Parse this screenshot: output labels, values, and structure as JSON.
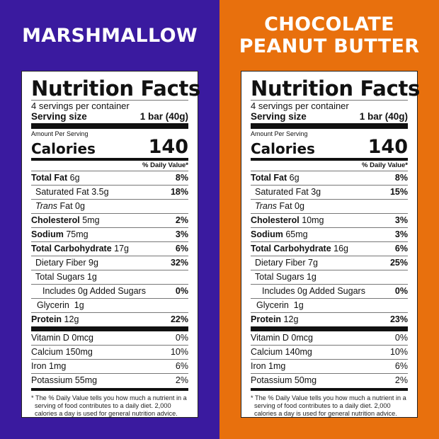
{
  "colors": {
    "left_bg": "#3a1a9f",
    "right_bg": "#e8700d"
  },
  "panels": [
    {
      "heading": [
        "MARSHMALLOW"
      ],
      "title": "Nutrition Facts",
      "servings": "4 servings per container",
      "serving_size_label": "Serving size",
      "serving_size_value": "1 bar (40g)",
      "amount_per_serving": "Amount Per Serving",
      "calories_label": "Calories",
      "calories_value": "140",
      "daily_value_header": "% Daily Value*",
      "nutrients": [
        {
          "bold": "Total Fat",
          "amount": " 6g",
          "dv": "8%",
          "indent": 0
        },
        {
          "bold": "",
          "amount": "Saturated Fat 3.5g",
          "dv": "18%",
          "indent": 6
        },
        {
          "italic": "Trans",
          "amount": " Fat 0g",
          "dv": "",
          "indent": 6
        },
        {
          "bold": "Cholesterol",
          "amount": " 5mg",
          "dv": "2%",
          "indent": 0
        },
        {
          "bold": "Sodium",
          "amount": " 75mg",
          "dv": "3%",
          "indent": 0
        },
        {
          "bold": "Total Carbohydrate",
          "amount": " 17g",
          "dv": "6%",
          "indent": 0
        },
        {
          "bold": "",
          "amount": "Dietary Fiber 9g",
          "dv": "32%",
          "indent": 6
        },
        {
          "bold": "",
          "amount": "Total Sugars 1g",
          "dv": "",
          "indent": 6
        },
        {
          "bold": "",
          "amount": "Includes 0g Added Sugars",
          "dv": "0%",
          "indent": 16
        },
        {
          "bold": "",
          "amount": "Glycerin  1g",
          "dv": "",
          "indent": 8
        },
        {
          "bold": "Protein",
          "amount": " 12g",
          "dv": "22%",
          "indent": 0
        }
      ],
      "vitamins": [
        {
          "name": "Vitamin D 0mcg",
          "dv": "0%"
        },
        {
          "name": "Calcium 150mg",
          "dv": "10%"
        },
        {
          "name": "Iron 1mg",
          "dv": "6%"
        },
        {
          "name": "Potassium 55mg",
          "dv": "2%"
        }
      ],
      "footnote": "* The % Daily Value tells you how much a nutrient in a serving of food contributes to a daily diet. 2,000 calories a day is used for general nutrition advice."
    },
    {
      "heading": [
        "CHOCOLATE",
        "PEANUT BUTTER"
      ],
      "title": "Nutrition Facts",
      "servings": "4 servings per container",
      "serving_size_label": "Serving size",
      "serving_size_value": "1 bar (40g)",
      "amount_per_serving": "Amount Per Serving",
      "calories_label": "Calories",
      "calories_value": "140",
      "daily_value_header": "% Daily Value*",
      "nutrients": [
        {
          "bold": "Total Fat",
          "amount": " 6g",
          "dv": "8%",
          "indent": 0
        },
        {
          "bold": "",
          "amount": "Saturated Fat 3g",
          "dv": "15%",
          "indent": 6
        },
        {
          "italic": "Trans",
          "amount": " Fat 0g",
          "dv": "",
          "indent": 6
        },
        {
          "bold": "Cholesterol",
          "amount": " 10mg",
          "dv": "3%",
          "indent": 0
        },
        {
          "bold": "Sodium",
          "amount": " 65mg",
          "dv": "3%",
          "indent": 0
        },
        {
          "bold": "Total Carbohydrate",
          "amount": " 16g",
          "dv": "6%",
          "indent": 0
        },
        {
          "bold": "",
          "amount": "Dietary Fiber 7g",
          "dv": "25%",
          "indent": 6
        },
        {
          "bold": "",
          "amount": "Total Sugars 1g",
          "dv": "",
          "indent": 6
        },
        {
          "bold": "",
          "amount": "Includes 0g Added Sugars",
          "dv": "0%",
          "indent": 16
        },
        {
          "bold": "",
          "amount": "Glycerin  1g",
          "dv": "",
          "indent": 8
        },
        {
          "bold": "Protein",
          "amount": " 12g",
          "dv": "23%",
          "indent": 0
        }
      ],
      "vitamins": [
        {
          "name": "Vitamin D 0mcg",
          "dv": "0%"
        },
        {
          "name": "Calcium 140mg",
          "dv": "10%"
        },
        {
          "name": "Iron 1mg",
          "dv": "6%"
        },
        {
          "name": "Potassium 50mg",
          "dv": "2%"
        }
      ],
      "footnote": "* The % Daily Value tells you how much a nutrient in a serving of food contributes to a daily diet. 2,000 calories a day is used for general nutrition advice."
    }
  ]
}
